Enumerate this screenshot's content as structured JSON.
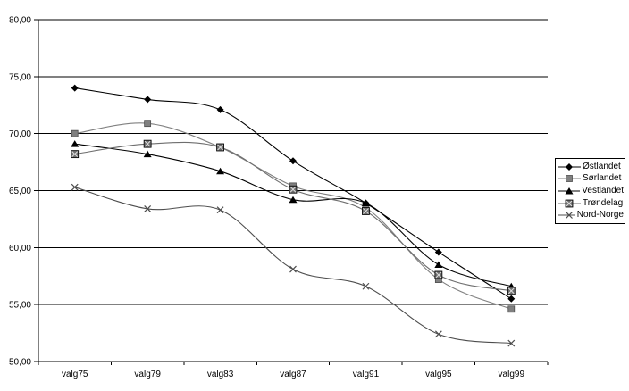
{
  "chart_data": {
    "type": "line",
    "line_style": "smoothed",
    "title": "",
    "xlabel": "",
    "ylabel": "",
    "categories": [
      "valg75",
      "valg79",
      "valg83",
      "valg87",
      "valg91",
      "valg95",
      "valg99"
    ],
    "series": [
      {
        "name": "Østlandet",
        "marker": "diamond",
        "color": "#000000",
        "values": [
          74.0,
          73.0,
          72.1,
          67.6,
          63.9,
          59.6,
          55.5
        ]
      },
      {
        "name": "Sørlandet",
        "marker": "square",
        "color": "#808080",
        "values": [
          70.0,
          70.9,
          68.8,
          65.4,
          63.5,
          57.2,
          54.6
        ]
      },
      {
        "name": "Vestlandet",
        "marker": "triangle",
        "color": "#000000",
        "values": [
          69.1,
          68.2,
          66.7,
          64.2,
          63.9,
          58.5,
          56.6
        ]
      },
      {
        "name": "Trøndelag",
        "marker": "boxed-x",
        "color": "#6e6e6e",
        "values": [
          68.2,
          69.1,
          68.8,
          65.1,
          63.2,
          57.6,
          56.2
        ]
      },
      {
        "name": "Nord-Norge",
        "marker": "x-cross",
        "color": "#4d4d4d",
        "values": [
          65.3,
          63.4,
          63.3,
          58.1,
          56.6,
          52.4,
          51.6
        ]
      }
    ],
    "ylim": [
      50,
      80
    ],
    "ytick_step": 5,
    "ytick_labels": [
      "50,00",
      "55,00",
      "60,00",
      "65,00",
      "70,00",
      "75,00",
      "80,00"
    ],
    "grid": "horizontal-only",
    "gridline_color": "#000000",
    "axis_color": "#000000",
    "background_color": "#ffffff",
    "legend_position": "right",
    "legend_border_color": "#000000"
  }
}
